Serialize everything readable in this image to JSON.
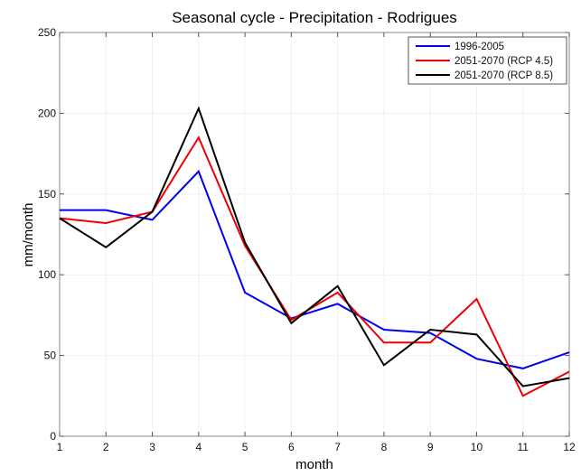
{
  "chart_data": {
    "type": "line",
    "title": "Seasonal cycle  - Precipitation - Rodrigues",
    "xlabel": "month",
    "ylabel": "mm/month",
    "x": [
      1,
      2,
      3,
      4,
      5,
      6,
      7,
      8,
      9,
      10,
      11,
      12
    ],
    "xlim": [
      1,
      12
    ],
    "ylim": [
      0,
      250
    ],
    "xticks": [
      1,
      2,
      3,
      4,
      5,
      6,
      7,
      8,
      9,
      10,
      11,
      12
    ],
    "yticks": [
      0,
      50,
      100,
      150,
      200,
      250
    ],
    "grid": true,
    "legend_position": "top-right",
    "series": [
      {
        "name": "1996-2005",
        "color": "#0000ee",
        "values": [
          140,
          140,
          134,
          164,
          89,
          73,
          82,
          66,
          64,
          48,
          42,
          52
        ]
      },
      {
        "name": "2051-2070 (RCP 4.5)",
        "color": "#ee0000",
        "values": [
          135,
          132,
          139,
          185,
          118,
          72,
          89,
          58,
          58,
          85,
          25,
          40
        ]
      },
      {
        "name": "2051-2070 (RCP 8.5)",
        "color": "#000000",
        "values": [
          135,
          117,
          139,
          203,
          120,
          70,
          93,
          44,
          66,
          63,
          31,
          36
        ]
      }
    ]
  }
}
